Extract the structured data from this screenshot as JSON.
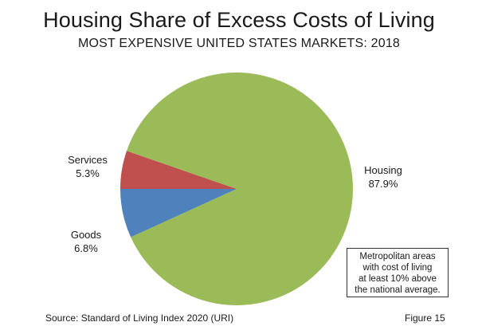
{
  "chart_data": {
    "type": "pie",
    "title": "Housing Share of Excess Costs of Living",
    "subtitle": "MOST EXPENSIVE UNITED STATES MARKETS: 2018",
    "slices": [
      {
        "name": "Housing",
        "value": 87.9,
        "label": "87.9%",
        "color": "#9bbb59"
      },
      {
        "name": "Services",
        "value": 5.3,
        "label": "5.3%",
        "color": "#c0504d"
      },
      {
        "name": "Goods",
        "value": 6.8,
        "label": "6.8%",
        "color": "#4f81bd"
      }
    ],
    "start_direction": "left (9 o'clock), clockwise"
  },
  "annotation": {
    "lines": [
      "Metropolitan areas",
      "with cost of living",
      "at least 10% above",
      "the national average."
    ]
  },
  "footer": {
    "source": "Source: Standard of Living Index 2020 (URI)",
    "figure": "Figure 15"
  }
}
